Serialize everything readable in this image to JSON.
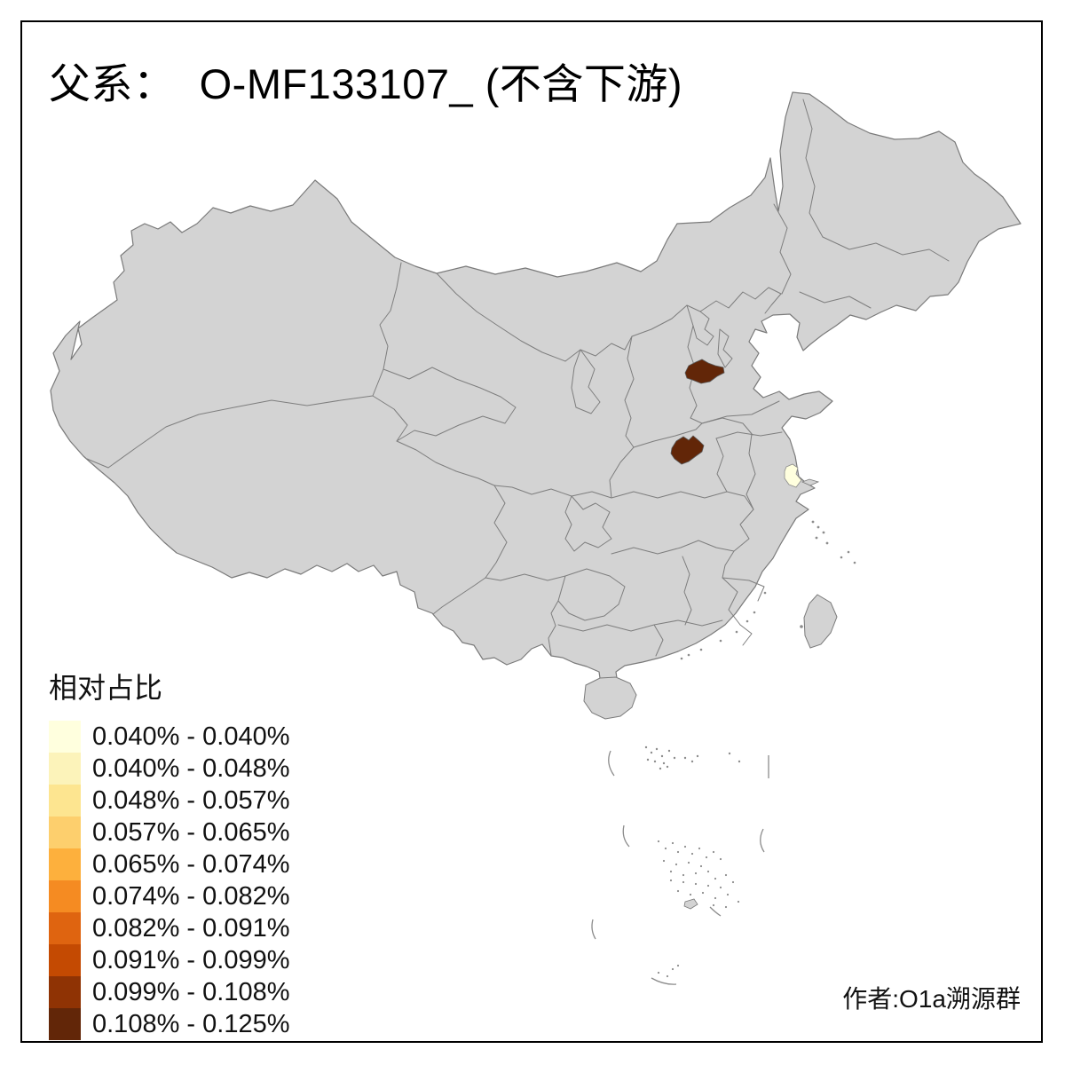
{
  "title": "父系：  O-MF133107_ (不含下游)",
  "attribution": "作者:O1a溯源群",
  "legend": {
    "title": "相对占比"
  },
  "map": {
    "land_fill": "#D3D3D3",
    "coast_color": "#7A7A7A",
    "border_color": "#7E7E7E",
    "background": "#FFFFFF",
    "islet_color": "#8C8C8C"
  },
  "chart_data": {
    "type": "choropleth",
    "title": "父系：  O-MF133107_ (不含下游)",
    "legend_title": "相对占比",
    "legend_position": "bottom-left",
    "bins": [
      {
        "range": "0.040% - 0.040%",
        "color": "#FFFFDE"
      },
      {
        "range": "0.040% - 0.048%",
        "color": "#FCF3BA"
      },
      {
        "range": "0.048% - 0.057%",
        "color": "#FDE590"
      },
      {
        "range": "0.057% - 0.065%",
        "color": "#FDCF6D"
      },
      {
        "range": "0.065% - 0.074%",
        "color": "#FDB03D"
      },
      {
        "range": "0.074% - 0.082%",
        "color": "#F58B22"
      },
      {
        "range": "0.082% - 0.091%",
        "color": "#DF6410"
      },
      {
        "range": "0.091% - 0.099%",
        "color": "#C44A02"
      },
      {
        "range": "0.099% - 0.108%",
        "color": "#8F3304"
      },
      {
        "range": "0.108% - 0.125%",
        "color": "#622608"
      }
    ],
    "highlighted_regions": [
      {
        "location": "south-hebei",
        "bin": "0.108% - 0.125%",
        "color": "#622608"
      },
      {
        "location": "north-henan",
        "bin": "0.108% - 0.125%",
        "color": "#622608"
      },
      {
        "location": "south-jiangsu",
        "bin": "0.040% - 0.040%",
        "color": "#FFFFDE"
      }
    ]
  }
}
